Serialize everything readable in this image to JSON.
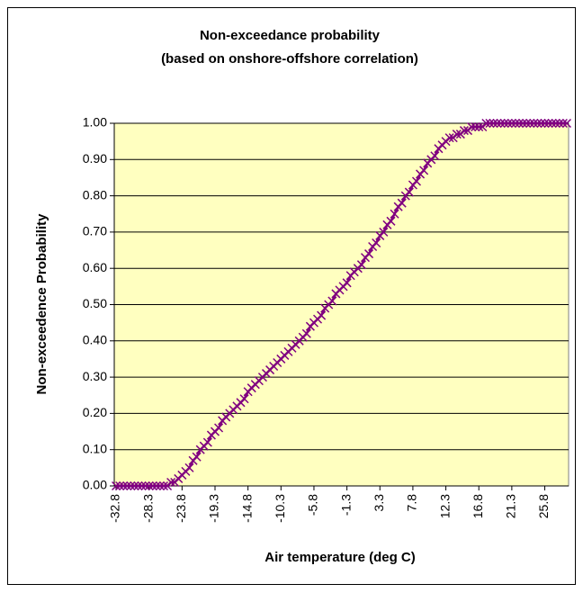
{
  "chart_data": {
    "type": "line",
    "title": "Non-exceedance probability",
    "subtitle": "(based on onshore-offshore correlation)",
    "x_label": "Air temperature (deg C)",
    "y_label": "Non-exceedence Probability",
    "categories": [
      "-32.8",
      null,
      null,
      null,
      null,
      null,
      null,
      null,
      null,
      "-28.3",
      null,
      null,
      null,
      null,
      null,
      null,
      null,
      null,
      "-23.8",
      null,
      null,
      null,
      null,
      null,
      null,
      null,
      null,
      "-19.3",
      null,
      null,
      null,
      null,
      null,
      null,
      null,
      null,
      "-14.8",
      null,
      null,
      null,
      null,
      null,
      null,
      null,
      null,
      "-10.3",
      null,
      null,
      null,
      null,
      null,
      null,
      null,
      null,
      "-5.8",
      null,
      null,
      null,
      null,
      null,
      null,
      null,
      null,
      "-1.3",
      null,
      null,
      null,
      null,
      null,
      null,
      null,
      null,
      "3.3",
      null,
      null,
      null,
      null,
      null,
      null,
      null,
      null,
      "7.8",
      null,
      null,
      null,
      null,
      null,
      null,
      null,
      null,
      "12.3",
      null,
      null,
      null,
      null,
      null,
      null,
      null,
      null,
      "16.8",
      null,
      null,
      null,
      null,
      null,
      null,
      null,
      null,
      "21.3",
      null,
      null,
      null,
      null,
      null,
      null,
      null,
      null,
      "25.8",
      null,
      null,
      null,
      null,
      null,
      null
    ],
    "series": [
      {
        "name": "Non-exceedance probability",
        "color": "#800080",
        "values": [
          0,
          0,
          0,
          0,
          0,
          0,
          0,
          0,
          0,
          0,
          0,
          0,
          0,
          0,
          0,
          0.01,
          0.01,
          0.02,
          0.03,
          0.04,
          0.05,
          0.07,
          0.08,
          0.1,
          0.11,
          0.12,
          0.14,
          0.15,
          0.16,
          0.18,
          0.19,
          0.2,
          0.21,
          0.22,
          0.23,
          0.24,
          0.26,
          0.27,
          0.28,
          0.29,
          0.3,
          0.31,
          0.32,
          0.33,
          0.34,
          0.35,
          0.36,
          0.37,
          0.38,
          0.39,
          0.4,
          0.41,
          0.42,
          0.44,
          0.45,
          0.46,
          0.47,
          0.49,
          0.5,
          0.51,
          0.53,
          0.54,
          0.55,
          0.56,
          0.58,
          0.59,
          0.6,
          0.61,
          0.63,
          0.64,
          0.66,
          0.67,
          0.69,
          0.7,
          0.72,
          0.73,
          0.75,
          0.77,
          0.78,
          0.8,
          0.81,
          0.83,
          0.84,
          0.86,
          0.87,
          0.89,
          0.9,
          0.91,
          0.93,
          0.94,
          0.95,
          0.96,
          0.96,
          0.97,
          0.97,
          0.98,
          0.98,
          0.99,
          0.99,
          0.99,
          0.99,
          1,
          1,
          1,
          1,
          1,
          1,
          1,
          1,
          1,
          1,
          1,
          1,
          1,
          1,
          1,
          1,
          1,
          1,
          1,
          1,
          1,
          1,
          1
        ]
      }
    ],
    "ylim": [
      0,
      1
    ],
    "yticks": [
      {
        "value": 0,
        "label": "0.00"
      },
      {
        "value": 0.1,
        "label": "0.10"
      },
      {
        "value": 0.2,
        "label": "0.20"
      },
      {
        "value": 0.3,
        "label": "0.30"
      },
      {
        "value": 0.4,
        "label": "0.40"
      },
      {
        "value": 0.5,
        "label": "0.50"
      },
      {
        "value": 0.6,
        "label": "0.60"
      },
      {
        "value": 0.7,
        "label": "0.70"
      },
      {
        "value": 0.8,
        "label": "0.80"
      },
      {
        "value": 0.9,
        "label": "0.90"
      },
      {
        "value": 1,
        "label": "1.00"
      }
    ],
    "grid": true,
    "plot_background": "#ffffc0"
  }
}
